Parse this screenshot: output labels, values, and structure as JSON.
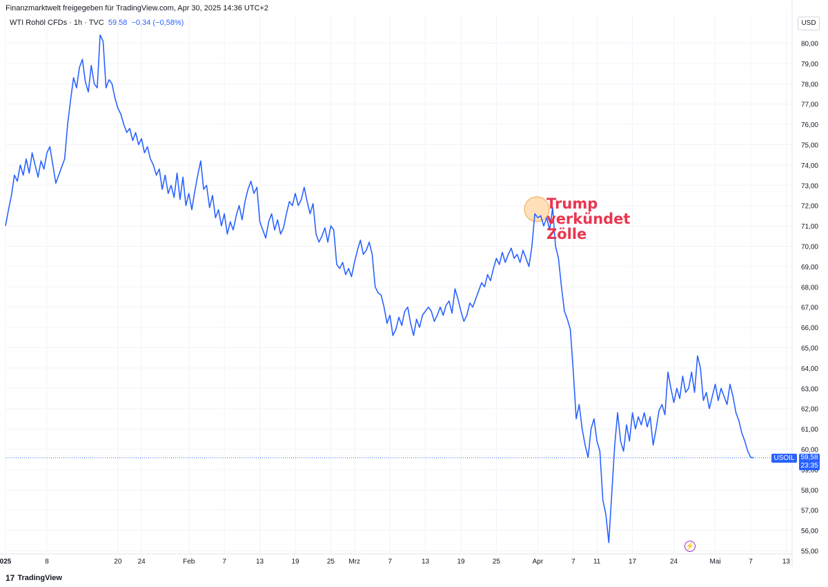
{
  "header": {
    "published": "Finanzmarktwelt freigegeben für TradingView.com, Apr 30, 2025 14:36 UTC+2",
    "symbol_desc": "WTI Rohöl CFDs · 1h · TVC",
    "last_price": "59,58",
    "change": "−0,34 (−0,58%)"
  },
  "currency": "USD",
  "price_tag": {
    "symbol": "USOIL",
    "price": "59,58",
    "countdown": "23:35"
  },
  "annotation": {
    "lines": [
      "Trump",
      "verkündet",
      "Zölle"
    ]
  },
  "footer": {
    "logo_text": "TradingView",
    "logo_mark": "17"
  },
  "colors": {
    "line": "#2962ff",
    "annotation": "#e8364f",
    "highlight_fill": "#ffd8a8",
    "highlight_stroke": "#f5a34a",
    "grid": "#f0f3fa",
    "price_line": "#2962ff"
  },
  "chart_data": {
    "type": "line",
    "title": "WTI Rohöl CFDs · 1h · TVC",
    "xlabel": "",
    "ylabel": "",
    "ylim": [
      54.8,
      80.8
    ],
    "y_ticks": [
      "80,00",
      "79,00",
      "78,00",
      "77,00",
      "76,00",
      "75,00",
      "74,00",
      "73,00",
      "72,00",
      "71,00",
      "70,00",
      "69,00",
      "68,00",
      "67,00",
      "66,00",
      "65,00",
      "64,00",
      "63,00",
      "62,00",
      "61,00",
      "60,00",
      "59,00",
      "58,00",
      "57,00",
      "56,00",
      "55,00"
    ],
    "y_tick_values": [
      80,
      79,
      78,
      77,
      76,
      75,
      74,
      73,
      72,
      71,
      70,
      69,
      68,
      67,
      66,
      65,
      64,
      63,
      62,
      61,
      60,
      59,
      58,
      57,
      56,
      55
    ],
    "x_ticks": [
      "025",
      "8",
      "20",
      "24",
      "Feb",
      "7",
      "13",
      "19",
      "25",
      "Mrz",
      "7",
      "13",
      "19",
      "25",
      "Apr",
      "7",
      "11",
      "17",
      "24",
      "Mai",
      "7",
      "13"
    ],
    "x_tick_days": [
      1,
      8,
      20,
      24,
      32,
      38,
      44,
      50,
      56,
      60,
      66,
      72,
      78,
      84,
      91,
      97,
      101,
      107,
      114,
      121,
      127,
      133
    ],
    "x_range_days": [
      1,
      134
    ],
    "series": [
      {
        "name": "",
        "points": [
          [
            1,
            71.0
          ],
          [
            1.5,
            71.8
          ],
          [
            2,
            72.5
          ],
          [
            2.5,
            73.5
          ],
          [
            3,
            73.2
          ],
          [
            3.5,
            74.0
          ],
          [
            4,
            73.5
          ],
          [
            4.5,
            74.3
          ],
          [
            5,
            73.6
          ],
          [
            5.5,
            74.6
          ],
          [
            6,
            74.0
          ],
          [
            6.5,
            73.4
          ],
          [
            7,
            74.2
          ],
          [
            7.5,
            73.8
          ],
          [
            8,
            74.6
          ],
          [
            8.5,
            74.9
          ],
          [
            9,
            74.0
          ],
          [
            9.5,
            73.1
          ],
          [
            10,
            73.5
          ],
          [
            10.5,
            73.9
          ],
          [
            11,
            74.3
          ],
          [
            11.5,
            76.0
          ],
          [
            12,
            77.2
          ],
          [
            12.5,
            78.3
          ],
          [
            13,
            77.8
          ],
          [
            13.5,
            78.8
          ],
          [
            14,
            79.2
          ],
          [
            14.5,
            78.1
          ],
          [
            15,
            77.6
          ],
          [
            15.5,
            78.9
          ],
          [
            16,
            78.0
          ],
          [
            16.5,
            77.8
          ],
          [
            17,
            80.4
          ],
          [
            17.5,
            80.1
          ],
          [
            18,
            77.8
          ],
          [
            18.5,
            78.2
          ],
          [
            19,
            78.0
          ],
          [
            19.5,
            77.3
          ],
          [
            20,
            76.8
          ],
          [
            20.5,
            76.5
          ],
          [
            21,
            76.0
          ],
          [
            21.5,
            75.6
          ],
          [
            22,
            75.8
          ],
          [
            22.5,
            75.2
          ],
          [
            23,
            75.6
          ],
          [
            23.5,
            75.0
          ],
          [
            24,
            75.3
          ],
          [
            24.5,
            74.6
          ],
          [
            25,
            74.9
          ],
          [
            25.5,
            74.3
          ],
          [
            26,
            74.0
          ],
          [
            26.5,
            73.5
          ],
          [
            27,
            73.8
          ],
          [
            27.5,
            72.8
          ],
          [
            28,
            73.5
          ],
          [
            28.5,
            72.6
          ],
          [
            29,
            73.0
          ],
          [
            29.5,
            72.4
          ],
          [
            30,
            73.6
          ],
          [
            30.5,
            72.3
          ],
          [
            31,
            73.4
          ],
          [
            31.5,
            72.0
          ],
          [
            32,
            72.6
          ],
          [
            32.5,
            71.8
          ],
          [
            33,
            72.7
          ],
          [
            33.5,
            73.5
          ],
          [
            34,
            74.2
          ],
          [
            34.5,
            72.8
          ],
          [
            35,
            73.0
          ],
          [
            35.5,
            71.9
          ],
          [
            36,
            72.5
          ],
          [
            36.5,
            71.4
          ],
          [
            37,
            71.8
          ],
          [
            37.5,
            71.0
          ],
          [
            38,
            71.6
          ],
          [
            38.5,
            70.6
          ],
          [
            39,
            71.2
          ],
          [
            39.5,
            70.8
          ],
          [
            40,
            71.5
          ],
          [
            40.5,
            72.0
          ],
          [
            41,
            71.3
          ],
          [
            41.5,
            72.2
          ],
          [
            42,
            72.8
          ],
          [
            42.5,
            73.2
          ],
          [
            43,
            72.6
          ],
          [
            43.5,
            72.9
          ],
          [
            44,
            71.2
          ],
          [
            44.5,
            70.8
          ],
          [
            45,
            70.4
          ],
          [
            45.5,
            71.2
          ],
          [
            46,
            71.6
          ],
          [
            46.5,
            70.8
          ],
          [
            47,
            71.3
          ],
          [
            47.5,
            70.6
          ],
          [
            48,
            70.9
          ],
          [
            48.5,
            71.6
          ],
          [
            49,
            72.2
          ],
          [
            49.5,
            72.0
          ],
          [
            50,
            72.6
          ],
          [
            50.5,
            72.0
          ],
          [
            51,
            72.3
          ],
          [
            51.5,
            72.9
          ],
          [
            52,
            72.2
          ],
          [
            52.5,
            71.6
          ],
          [
            53,
            72.1
          ],
          [
            53.5,
            70.6
          ],
          [
            54,
            70.2
          ],
          [
            54.5,
            70.5
          ],
          [
            55,
            70.9
          ],
          [
            55.5,
            70.2
          ],
          [
            56,
            71.0
          ],
          [
            56.5,
            70.8
          ],
          [
            57,
            69.1
          ],
          [
            57.5,
            68.9
          ],
          [
            58,
            69.2
          ],
          [
            58.5,
            68.6
          ],
          [
            59,
            68.9
          ],
          [
            59.5,
            68.5
          ],
          [
            60,
            69.2
          ],
          [
            60.5,
            69.8
          ],
          [
            61,
            70.3
          ],
          [
            61.5,
            69.6
          ],
          [
            62,
            69.8
          ],
          [
            62.5,
            70.2
          ],
          [
            63,
            69.6
          ],
          [
            63.5,
            68.0
          ],
          [
            64,
            67.7
          ],
          [
            64.5,
            67.6
          ],
          [
            65,
            67.0
          ],
          [
            65.5,
            66.2
          ],
          [
            66,
            66.6
          ],
          [
            66.5,
            65.6
          ],
          [
            67,
            65.9
          ],
          [
            67.5,
            66.5
          ],
          [
            68,
            66.1
          ],
          [
            68.5,
            66.8
          ],
          [
            69,
            67.0
          ],
          [
            69.5,
            66.2
          ],
          [
            70,
            65.6
          ],
          [
            70.5,
            66.4
          ],
          [
            71,
            66.0
          ],
          [
            71.5,
            66.6
          ],
          [
            72,
            66.8
          ],
          [
            72.5,
            67.0
          ],
          [
            73,
            66.8
          ],
          [
            73.5,
            66.3
          ],
          [
            74,
            66.6
          ],
          [
            74.5,
            67.0
          ],
          [
            75,
            66.6
          ],
          [
            75.5,
            67.1
          ],
          [
            76,
            67.3
          ],
          [
            76.5,
            66.7
          ],
          [
            77,
            67.9
          ],
          [
            77.5,
            67.4
          ],
          [
            78,
            66.8
          ],
          [
            78.5,
            66.3
          ],
          [
            79,
            66.6
          ],
          [
            79.5,
            67.2
          ],
          [
            80,
            67.0
          ],
          [
            80.5,
            67.4
          ],
          [
            81,
            67.8
          ],
          [
            81.5,
            68.2
          ],
          [
            82,
            68.0
          ],
          [
            82.5,
            68.6
          ],
          [
            83,
            68.3
          ],
          [
            83.5,
            68.9
          ],
          [
            84,
            69.4
          ],
          [
            84.5,
            69.1
          ],
          [
            85,
            69.7
          ],
          [
            85.5,
            69.2
          ],
          [
            86,
            69.6
          ],
          [
            86.5,
            69.9
          ],
          [
            87,
            69.4
          ],
          [
            87.5,
            69.6
          ],
          [
            88,
            69.2
          ],
          [
            88.5,
            69.8
          ],
          [
            89,
            69.4
          ],
          [
            89.5,
            69.0
          ],
          [
            90,
            70.0
          ],
          [
            90.5,
            71.6
          ],
          [
            91,
            71.4
          ],
          [
            91.5,
            71.5
          ],
          [
            92,
            71.0
          ],
          [
            92.5,
            71.4
          ],
          [
            93,
            70.8
          ],
          [
            93.5,
            71.9
          ],
          [
            94,
            70.0
          ],
          [
            94.5,
            69.4
          ],
          [
            95,
            68.0
          ],
          [
            95.5,
            66.8
          ],
          [
            96,
            66.4
          ],
          [
            96.5,
            65.9
          ],
          [
            97,
            63.8
          ],
          [
            97.5,
            61.5
          ],
          [
            98,
            62.2
          ],
          [
            98.5,
            61.0
          ],
          [
            99,
            60.2
          ],
          [
            99.5,
            59.6
          ],
          [
            100,
            61.0
          ],
          [
            100.5,
            61.5
          ],
          [
            101,
            60.4
          ],
          [
            101.5,
            59.9
          ],
          [
            102,
            57.5
          ],
          [
            102.5,
            56.8
          ],
          [
            103,
            55.4
          ],
          [
            103.5,
            57.8
          ],
          [
            104,
            60.2
          ],
          [
            104.5,
            61.8
          ],
          [
            105,
            60.4
          ],
          [
            105.5,
            59.9
          ],
          [
            106,
            61.2
          ],
          [
            106.5,
            60.4
          ],
          [
            107,
            61.8
          ],
          [
            107.5,
            61.0
          ],
          [
            108,
            61.6
          ],
          [
            108.5,
            61.2
          ],
          [
            109,
            61.8
          ],
          [
            109.5,
            61.1
          ],
          [
            110,
            61.6
          ],
          [
            110.5,
            60.2
          ],
          [
            111,
            61.0
          ],
          [
            111.5,
            61.9
          ],
          [
            112,
            62.2
          ],
          [
            112.5,
            61.7
          ],
          [
            113,
            63.8
          ],
          [
            113.5,
            63.0
          ],
          [
            114,
            62.3
          ],
          [
            114.5,
            63.0
          ],
          [
            115,
            62.5
          ],
          [
            115.5,
            63.6
          ],
          [
            116,
            62.8
          ],
          [
            116.5,
            63.0
          ],
          [
            117,
            63.8
          ],
          [
            117.5,
            62.8
          ],
          [
            118,
            64.6
          ],
          [
            118.5,
            64.0
          ],
          [
            119,
            62.4
          ],
          [
            119.5,
            62.8
          ],
          [
            120,
            62.0
          ],
          [
            120.5,
            62.6
          ],
          [
            121,
            63.2
          ],
          [
            121.5,
            62.4
          ],
          [
            122,
            63.0
          ],
          [
            122.5,
            62.6
          ],
          [
            123,
            62.2
          ],
          [
            123.5,
            63.2
          ],
          [
            124,
            62.6
          ],
          [
            124.5,
            61.8
          ],
          [
            125,
            61.4
          ],
          [
            125.5,
            60.8
          ],
          [
            126,
            60.4
          ],
          [
            126.5,
            59.9
          ],
          [
            127,
            59.6
          ],
          [
            127.5,
            59.58
          ]
        ]
      }
    ],
    "annotations": [
      "Trump",
      "verkündet",
      "Zölle"
    ],
    "grid": true,
    "last_value": 59.58
  }
}
